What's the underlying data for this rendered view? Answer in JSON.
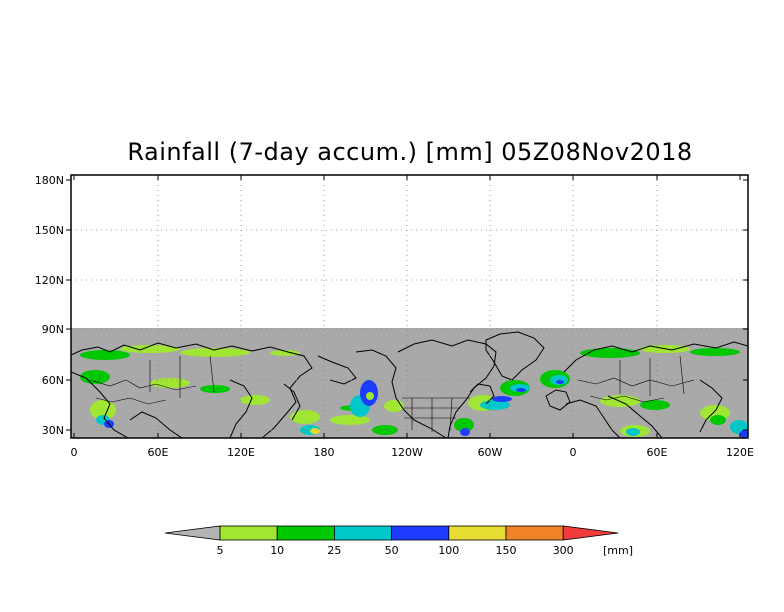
{
  "title": "Rainfall (7-day accum.) [mm] 05Z08Nov2018",
  "map": {
    "y_ticks": [
      "180N",
      "150N",
      "120N",
      "90N",
      "60N",
      "30N"
    ],
    "x_ticks": [
      "0",
      "60E",
      "120E",
      "180",
      "120W",
      "60W",
      "0",
      "60E",
      "120E"
    ],
    "no_data_color": "#a9a9a9",
    "grid": "dotted"
  },
  "colorbar": {
    "under_color": "#b4b4b4",
    "over_color": "#f03c3c",
    "colors": [
      "#a0e632",
      "#00c800",
      "#00c8c8",
      "#1e3cff",
      "#e6dc32",
      "#f08228"
    ],
    "labels": [
      "5",
      "10",
      "25",
      "50",
      "100",
      "150",
      "300"
    ],
    "unit": "[mm]"
  }
}
